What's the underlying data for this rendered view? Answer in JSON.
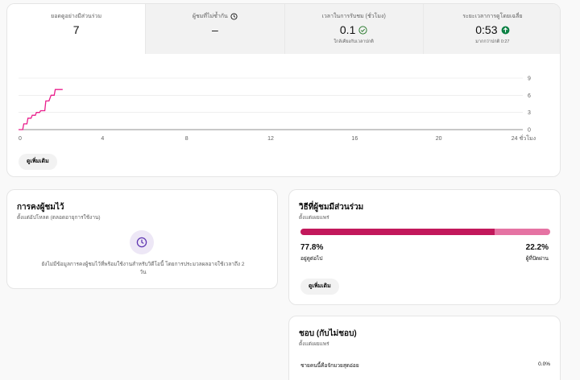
{
  "metrics": [
    {
      "label": "ยอดดูอย่างมีส่วนร่วม",
      "value": "7",
      "sub": "",
      "icon": "",
      "active": true
    },
    {
      "label": "ผู้ชมที่ไม่ซ้ำกัน",
      "value": "–",
      "sub": "",
      "icon": "clock-icon",
      "active": false
    },
    {
      "label": "เวลาในการรับชม (ชั่วโมง)",
      "value": "0.1",
      "sub": "ใกล้เคียงกับเวลาปกติ",
      "icon": "check-circle-icon",
      "active": false
    },
    {
      "label": "ระยะเวลาการดูโดยเฉลี่ย",
      "value": "0:53",
      "sub": "มากกว่าปกติ 0:27",
      "icon": "arrow-up-circle-icon",
      "active": false
    }
  ],
  "chart_data": {
    "type": "line",
    "xticks": [
      "0",
      "4",
      "8",
      "12",
      "16",
      "20",
      "24 ชั่วโมง"
    ],
    "yticks": [
      "9",
      "6",
      "3",
      "0"
    ],
    "xlim": [
      0,
      24
    ],
    "ylim": [
      0,
      9
    ],
    "series": [
      {
        "color": "#e91e8c",
        "x": [
          0,
          0.2,
          0.25,
          0.4,
          0.45,
          0.6,
          0.65,
          0.8,
          0.85,
          1.0,
          1.05,
          1.25,
          1.3,
          1.45,
          1.55,
          1.7,
          1.75,
          2.1
        ],
        "y": [
          0,
          0,
          1,
          1,
          2,
          2,
          2.5,
          2.5,
          3,
          3,
          3.3,
          3.3,
          5,
          5,
          6,
          6,
          7,
          7
        ]
      }
    ]
  },
  "main": {
    "more_label": "ดูเพิ่มเติม"
  },
  "retention": {
    "title": "การคงผู้ชมไว้",
    "subtitle": "ตั้งแต่อัปโหลด (ตลอดอายุการใช้งาน)",
    "empty_icon": "clock-icon",
    "empty_text": "ยังไม่มีข้อมูลการคงผู้ชมไว้ที่พร้อมใช้งานสำหรับวิดีโอนี้ โดยการประมวลผลอาจใช้เวลาถึง 2 วัน"
  },
  "engagement": {
    "title": "วิธีที่ผู้ชมมีส่วนร่วม",
    "subtitle": "ตั้งแต่เผยแพร่",
    "stay_pct": "77.8%",
    "stay_label": "อยู่ดูต่อไป",
    "stay_fraction": 0.778,
    "skip_pct": "22.2%",
    "skip_label": "ผู้ที่ปัดผ่าน",
    "more_label": "ดูเพิ่มเติม",
    "colors": {
      "stay": "#c2185b",
      "skip": "#e573a3"
    }
  },
  "likes": {
    "title": "ชอบ (กับไม่ชอบ)",
    "subtitle": "ตั้งแต่เผยแพร่",
    "rows": [
      {
        "label": "ชายคนนี้คือจักมวยสุดอ่อย",
        "value": "0.0%"
      }
    ]
  }
}
